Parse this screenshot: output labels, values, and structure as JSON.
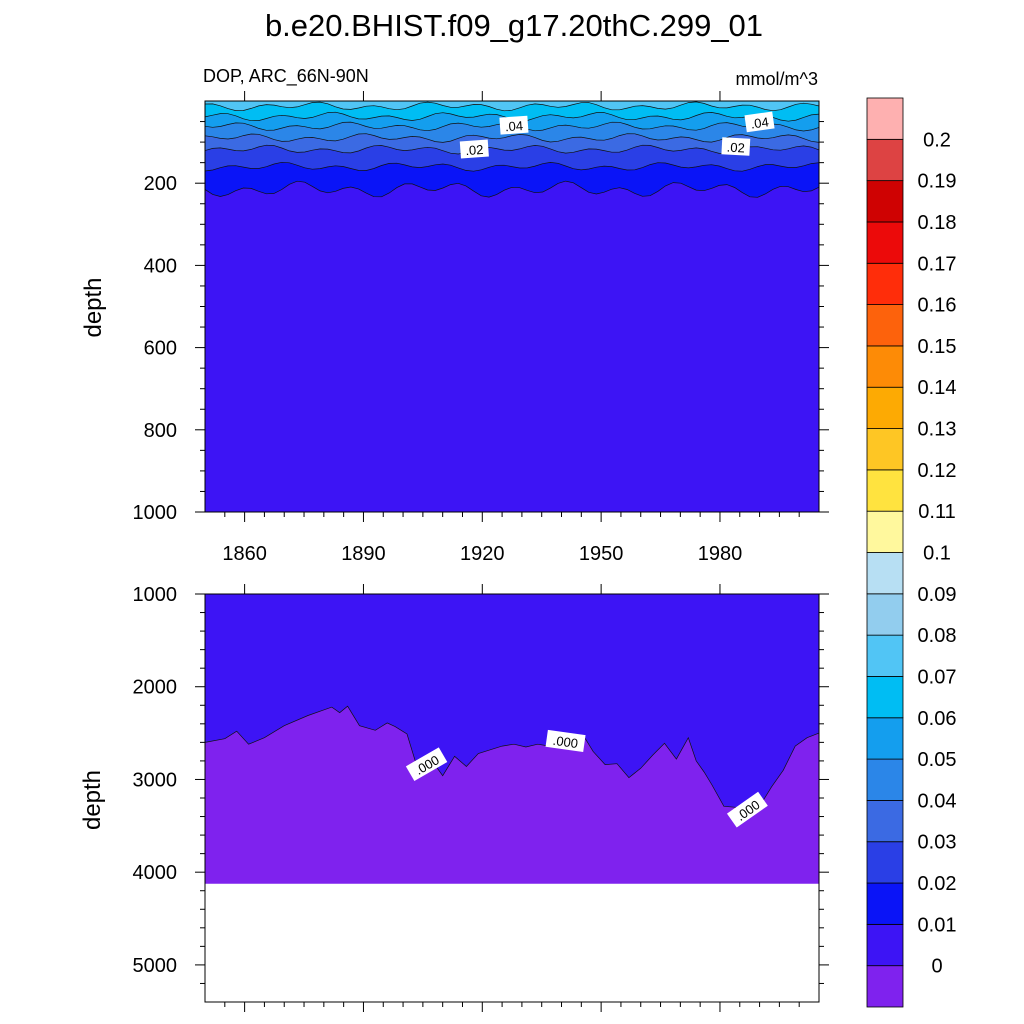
{
  "title": "b.e20.BHIST.f09_g17.20thC.299_01",
  "variable_label": "DOP, ARC_66N-90N",
  "units_label": "mmol/m^3",
  "colors": {
    "level_fills": [
      "#7f22ee",
      "#3d14f5",
      "#0a14f7",
      "#2a3fe6",
      "#3b6ae3",
      "#2b86e8",
      "#149eee",
      "#00bdf3",
      "#51c5f5",
      "#92cdee",
      "#b7dff3",
      "#fff89d",
      "#ffe33f",
      "#fec624",
      "#fdaa03",
      "#fd8b06",
      "#fd620c",
      "#ff2d0a",
      "#ec0a0a",
      "#cf0202",
      "#dd4343",
      "#feb0b0"
    ]
  },
  "chart_data": [
    {
      "type": "contour",
      "panel": "upper",
      "x_tick_labels": [
        "1860",
        "1890",
        "1920",
        "1950",
        "1980"
      ],
      "x_ticks": [
        1860,
        1890,
        1920,
        1950,
        1980
      ],
      "xlim": [
        1850,
        2005
      ],
      "ylabel": "depth",
      "y_tick_labels": [
        "200",
        "400",
        "600",
        "800",
        "1000"
      ],
      "y_ticks": [
        200,
        400,
        600,
        800,
        1000
      ],
      "ylim": [
        0,
        1000
      ],
      "y_reversed": true,
      "contour_labels": [
        {
          "text": ".04",
          "x": 1928,
          "depth": 60,
          "angle": -4
        },
        {
          "text": ".04",
          "x": 1990,
          "depth": 52,
          "angle": -8
        },
        {
          "text": ".02",
          "x": 1918,
          "depth": 118,
          "angle": -4
        },
        {
          "text": ".02",
          "x": 1984,
          "depth": 112,
          "angle": 3
        }
      ],
      "approx_isolines": [
        {
          "value": 0.06,
          "depth": 13
        },
        {
          "value": 0.05,
          "depth": 38
        },
        {
          "value": 0.04,
          "depth": 62
        },
        {
          "value": 0.03,
          "depth": 90
        },
        {
          "value": 0.02,
          "depth": 118
        },
        {
          "value": 0.01,
          "depth": 160
        },
        {
          "value": 0.0,
          "depth": 215
        }
      ]
    },
    {
      "type": "contour",
      "panel": "lower",
      "ylabel": "depth",
      "y_tick_labels": [
        "1000",
        "2000",
        "3000",
        "4000",
        "5000"
      ],
      "y_ticks": [
        1000,
        2000,
        3000,
        4000,
        5000
      ],
      "ylim": [
        1000,
        5400
      ],
      "y_reversed": true,
      "xlim": [
        1850,
        2005
      ],
      "ocean_floor_depth": 4120,
      "contour_labels": [
        {
          "text": ".000",
          "x": 1906,
          "depth": 2840,
          "angle": -30
        },
        {
          "text": ".000",
          "x": 1941,
          "depth": 2590,
          "angle": 8
        },
        {
          "text": ".000",
          "x": 1987,
          "depth": 3330,
          "angle": -35
        }
      ],
      "zero_contour": {
        "x": [
          1850,
          1855,
          1858,
          1861,
          1865,
          1870,
          1876,
          1882,
          1884,
          1886,
          1889,
          1893,
          1896,
          1898,
          1901,
          1904,
          1907,
          1910,
          1913,
          1916,
          1919,
          1922,
          1925,
          1928,
          1931,
          1934,
          1937,
          1940,
          1943,
          1946,
          1948,
          1951,
          1954,
          1957,
          1960,
          1963,
          1966,
          1969,
          1972,
          1974,
          1976,
          1978,
          1981,
          1984,
          1987,
          1990,
          1993,
          1996,
          1999,
          2002,
          2005
        ],
        "depth": [
          2600,
          2560,
          2480,
          2620,
          2550,
          2420,
          2310,
          2220,
          2280,
          2210,
          2420,
          2470,
          2390,
          2430,
          2510,
          2930,
          2780,
          2960,
          2750,
          2860,
          2720,
          2680,
          2640,
          2620,
          2650,
          2620,
          2640,
          2660,
          2600,
          2560,
          2700,
          2840,
          2830,
          2980,
          2880,
          2740,
          2610,
          2780,
          2550,
          2800,
          2920,
          3060,
          3290,
          3300,
          3420,
          3290,
          3080,
          2900,
          2640,
          2550,
          2500
        ]
      }
    }
  ],
  "colorbar": {
    "labels": [
      "0",
      "0.01",
      "0.02",
      "0.03",
      "0.04",
      "0.05",
      "0.06",
      "0.07",
      "0.08",
      "0.09",
      "0.1",
      "0.11",
      "0.12",
      "0.13",
      "0.14",
      "0.15",
      "0.16",
      "0.17",
      "0.18",
      "0.19",
      "0.2"
    ]
  }
}
